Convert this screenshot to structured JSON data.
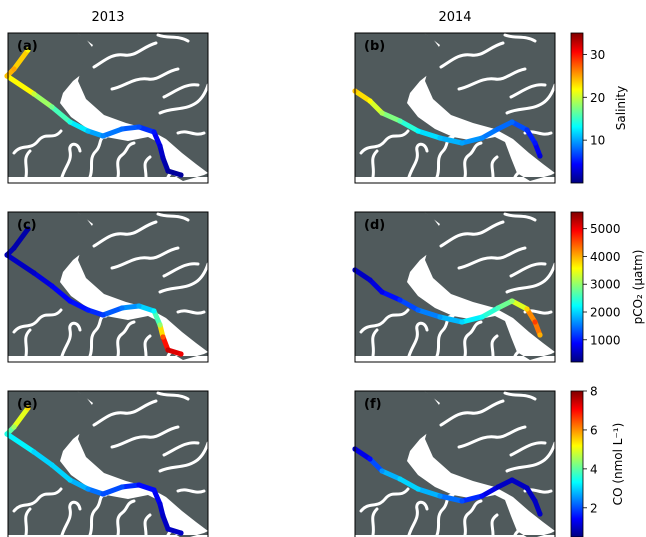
{
  "columns": [
    "2013",
    "2014"
  ],
  "colors": {
    "land": "#505a5c",
    "water": "#ffffff",
    "frame": "#000000"
  },
  "colormap": "jet",
  "panels": [
    {
      "label": "(a)",
      "year": "2013",
      "variable": "salinity",
      "track": [
        [
          28,
          50
        ],
        [
          14,
          69
        ],
        [
          7,
          76
        ],
        [
          34,
          94
        ],
        [
          52,
          107
        ],
        [
          70,
          122
        ],
        [
          88,
          131
        ],
        [
          103,
          136
        ],
        [
          122,
          129
        ],
        [
          139,
          127
        ],
        [
          154,
          132
        ],
        [
          160,
          146
        ],
        [
          163,
          158
        ],
        [
          168,
          171
        ],
        [
          181,
          175
        ]
      ],
      "values": [
        22,
        25,
        24,
        20,
        17,
        14,
        11,
        9,
        8,
        7,
        5,
        3,
        2,
        1,
        1
      ]
    },
    {
      "label": "(b)",
      "year": "2014",
      "variable": "salinity",
      "track": [
        [
          355,
          91
        ],
        [
          370,
          101
        ],
        [
          382,
          113
        ],
        [
          400,
          121
        ],
        [
          418,
          131
        ],
        [
          440,
          138
        ],
        [
          462,
          143
        ],
        [
          482,
          138
        ],
        [
          498,
          129
        ],
        [
          512,
          122
        ],
        [
          527,
          130
        ],
        [
          535,
          143
        ],
        [
          540,
          156
        ]
      ],
      "values": [
        24,
        22,
        19,
        16,
        13,
        11,
        10,
        9,
        8,
        8,
        6,
        5,
        3
      ]
    },
    {
      "label": "(c)",
      "year": "2013",
      "variable": "pco2",
      "track": [
        [
          28,
          50
        ],
        [
          14,
          69
        ],
        [
          7,
          76
        ],
        [
          34,
          94
        ],
        [
          52,
          107
        ],
        [
          70,
          122
        ],
        [
          88,
          131
        ],
        [
          103,
          136
        ],
        [
          122,
          129
        ],
        [
          139,
          127
        ],
        [
          154,
          132
        ],
        [
          160,
          146
        ],
        [
          163,
          158
        ],
        [
          168,
          171
        ],
        [
          181,
          175
        ]
      ],
      "values": [
        400,
        450,
        500,
        600,
        800,
        900,
        1000,
        1200,
        1500,
        1800,
        2200,
        3000,
        4500,
        5200,
        5000
      ]
    },
    {
      "label": "(d)",
      "year": "2014",
      "variable": "pco2",
      "track": [
        [
          355,
          91
        ],
        [
          370,
          101
        ],
        [
          382,
          113
        ],
        [
          400,
          121
        ],
        [
          418,
          131
        ],
        [
          440,
          138
        ],
        [
          462,
          143
        ],
        [
          482,
          138
        ],
        [
          498,
          129
        ],
        [
          512,
          122
        ],
        [
          527,
          130
        ],
        [
          535,
          143
        ],
        [
          540,
          156
        ]
      ],
      "values": [
        500,
        600,
        800,
        1100,
        1400,
        1700,
        2000,
        2300,
        2600,
        3000,
        3800,
        4600,
        4000
      ]
    },
    {
      "label": "(e)",
      "year": "2013",
      "variable": "co",
      "track": [
        [
          28,
          50
        ],
        [
          14,
          69
        ],
        [
          7,
          76
        ],
        [
          34,
          94
        ],
        [
          52,
          107
        ],
        [
          70,
          122
        ],
        [
          88,
          131
        ],
        [
          103,
          136
        ],
        [
          122,
          129
        ],
        [
          139,
          127
        ],
        [
          154,
          132
        ],
        [
          160,
          146
        ],
        [
          163,
          158
        ],
        [
          168,
          171
        ],
        [
          181,
          175
        ]
      ],
      "values": [
        5.5,
        4.5,
        3.5,
        3,
        3,
        3,
        2.5,
        2,
        2,
        1.5,
        1.5,
        1.2,
        1,
        1,
        1
      ]
    },
    {
      "label": "(f)",
      "year": "2014",
      "variable": "co",
      "track": [
        [
          355,
          91
        ],
        [
          370,
          101
        ],
        [
          382,
          113
        ],
        [
          400,
          121
        ],
        [
          418,
          131
        ],
        [
          440,
          138
        ],
        [
          462,
          143
        ],
        [
          482,
          138
        ],
        [
          498,
          129
        ],
        [
          512,
          122
        ],
        [
          527,
          130
        ],
        [
          535,
          143
        ],
        [
          540,
          156
        ]
      ],
      "values": [
        1,
        1.5,
        2.5,
        3,
        3,
        2.5,
        2,
        1.5,
        1,
        1,
        1,
        1,
        1
      ]
    }
  ],
  "colorbars": [
    {
      "id": "salinity",
      "title": "Salinity",
      "min": 0,
      "max": 35,
      "ticks": [
        10,
        20,
        30
      ],
      "tick_labels": [
        "10",
        "20",
        "30"
      ]
    },
    {
      "id": "pco2",
      "title": "pCO₂ (μatm)",
      "min": 200,
      "max": 5600,
      "ticks": [
        1000,
        2000,
        3000,
        4000,
        5000
      ],
      "tick_labels": [
        "1000",
        "2000",
        "3000",
        "4000",
        "5000"
      ]
    },
    {
      "id": "co",
      "title": "CO (nmol L⁻¹)",
      "min": 0.5,
      "max": 8,
      "ticks": [
        2,
        4,
        6,
        8
      ],
      "tick_labels": [
        "2",
        "4",
        "6",
        "8"
      ]
    }
  ]
}
